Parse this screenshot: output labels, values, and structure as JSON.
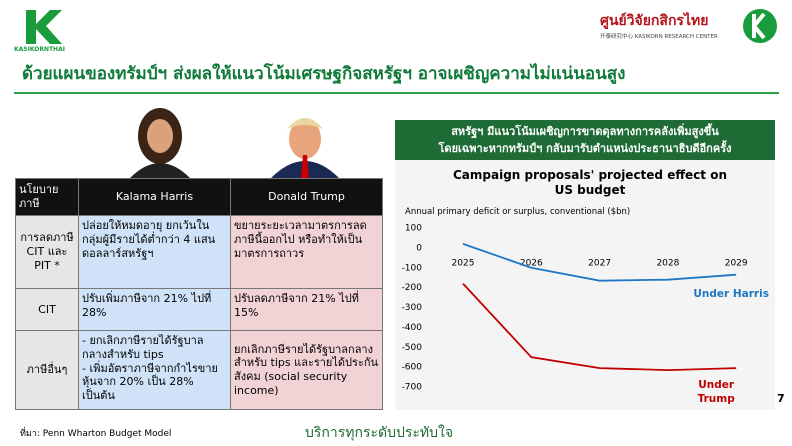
{
  "header": {
    "logo_left": "KASIKORNTHAI",
    "logo_right": "ศูนย์วิจัยกสิกรไทย",
    "logo_right_sub": "开泰研究中心 KASIKORN RESEARCH CENTER",
    "title": "ด้วยแผนของทรัมป์ฯ ส่งผลให้แนวโน้มเศรษฐกิจสหรัฐฯ อาจเผชิญความไม่แน่นอนสูง"
  },
  "table": {
    "header": [
      "นโยบาย ภาษี",
      "Kalama Harris",
      "Donald Trump"
    ],
    "rows": [
      [
        "การลดภาษี CIT และ PIT *",
        "ปล่อยให้หมดอายุ ยกเว้นในกลุ่มผู้มีรายได้ต่ำกว่า 4 แสนดอลลาร์สหรัฐฯ",
        "ขยายระยะเวลามาตรการลดภาษีนี้ออกไป หรือทำให้เป็นมาตรการถาวร"
      ],
      [
        "CIT",
        "ปรับเพิ่มภาษีจาก 21% ไปที่ 28%",
        "ปรับลดภาษีจาก 21% ไปที่ 15%"
      ],
      [
        "ภาษีอื่นๆ",
        [
          "- ยกเลิกภาษีรายได้รัฐบาลกลางสำหรับ tips",
          "- เพิ่มอัตราภาษีจากกำไรขายหุ้นจาก 20% เป็น 28% เป็นต้น"
        ],
        "ยกเลิกภาษีรายได้รัฐบาลกลางสำหรับ tips และรายได้ประกันสังคม (social security income)"
      ]
    ]
  },
  "panel": {
    "heading": [
      "สหรัฐฯ มีแนวโน้มเผชิญการขาดดุลทางการคลังเพิ่มสูงขึ้น",
      "โดยเฉพาะหากทรัมป์ฯ กลับมารับตำแหน่งประธานาธิบดีอีกครั้ง"
    ]
  },
  "chart_data": {
    "type": "line",
    "title": "Campaign proposals' projected effect on US budget",
    "subtitle": "Annual primary deficit or surplus, conventional ($bn)",
    "categories": [
      "2025",
      "2026",
      "2027",
      "2028",
      "2029"
    ],
    "series": [
      {
        "name": "Under Harris",
        "color": "#1f77c4",
        "values": [
          20,
          -100,
          -165,
          -160,
          -135
        ]
      },
      {
        "name": "Under Trump",
        "color": "#c00000",
        "values": [
          -180,
          -550,
          -605,
          -615,
          -605
        ]
      }
    ],
    "ylim": [
      -700,
      100
    ],
    "yticks": [
      100,
      0,
      -100,
      -200,
      -300,
      -400,
      -500,
      -600,
      -700
    ],
    "grid": false
  },
  "footer": {
    "source": "ที่มา: Penn Wharton Budget Model",
    "slogan": "บริการทุกระดับประทับใจ",
    "page": "7"
  }
}
